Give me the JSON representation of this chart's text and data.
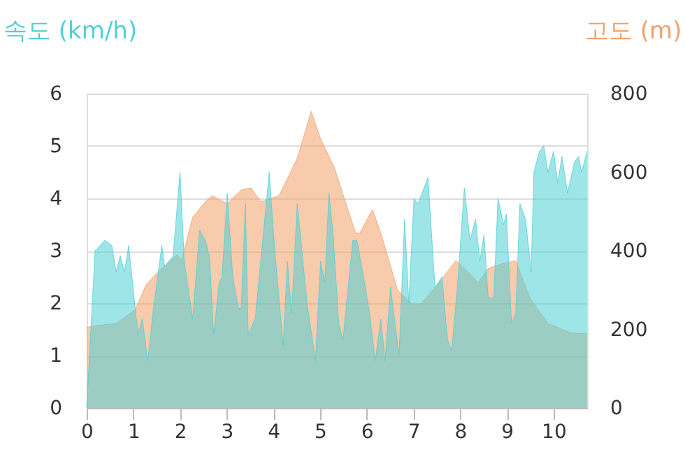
{
  "chart_data": {
    "type": "area",
    "ylabel": "속도 (km/h)",
    "y2label": "고도 (m)",
    "xlim": [
      0,
      10.72
    ],
    "xticks": [
      0,
      1,
      2,
      3,
      4,
      5,
      6,
      7,
      8,
      9,
      10
    ],
    "ylim": [
      0,
      6
    ],
    "yticks": [
      0,
      1,
      2,
      3,
      4,
      5,
      6
    ],
    "y2lim": [
      0,
      800
    ],
    "y2ticks": [
      0,
      200,
      400,
      600,
      800
    ],
    "grid": "y",
    "series": [
      {
        "color": "#f3a06a",
        "axis": "y2",
        "x": [
          0,
          0.24,
          0.63,
          1.04,
          1.28,
          1.52,
          1.94,
          2.03,
          2.27,
          2.54,
          2.69,
          3.01,
          3.31,
          3.52,
          3.73,
          4.12,
          4.51,
          4.81,
          5.01,
          5.31,
          5.76,
          5.85,
          6.12,
          6.3,
          6.66,
          6.96,
          7.16,
          7.49,
          7.91,
          8.09,
          8.39,
          8.6,
          8.84,
          9.19,
          9.49,
          9.88,
          10.39,
          10.72
        ],
        "values": [
          205,
          210,
          215,
          250,
          315,
          345,
          390,
          375,
          485,
          525,
          540,
          520,
          555,
          560,
          525,
          540,
          635,
          755,
          685,
          610,
          445,
          445,
          505,
          445,
          300,
          265,
          265,
          310,
          375,
          355,
          320,
          355,
          365,
          375,
          280,
          215,
          190,
          190
        ]
      },
      {
        "color": "#4fd0d6",
        "axis": "y",
        "x": [
          0,
          0.18,
          0.39,
          0.54,
          0.63,
          0.72,
          0.81,
          0.9,
          1.04,
          1.1,
          1.19,
          1.31,
          1.43,
          1.61,
          1.67,
          1.85,
          2.0,
          2.09,
          2.27,
          2.42,
          2.54,
          2.63,
          2.72,
          2.84,
          2.9,
          3.01,
          3.13,
          3.25,
          3.31,
          3.4,
          3.46,
          3.61,
          3.91,
          4.03,
          4.21,
          4.3,
          4.39,
          4.51,
          4.72,
          4.9,
          5.01,
          5.1,
          5.19,
          5.28,
          5.4,
          5.49,
          5.7,
          5.79,
          5.97,
          6.06,
          6.18,
          6.3,
          6.39,
          6.51,
          6.69,
          6.81,
          6.9,
          7.01,
          7.1,
          7.31,
          7.46,
          7.61,
          7.73,
          7.82,
          7.94,
          8.09,
          8.21,
          8.33,
          8.42,
          8.51,
          8.6,
          8.72,
          8.81,
          8.93,
          8.99,
          9.1,
          9.19,
          9.28,
          9.4,
          9.52,
          9.58,
          9.7,
          9.79,
          9.88,
          10.0,
          10.09,
          10.18,
          10.3,
          10.45,
          10.54,
          10.6,
          10.72
        ],
        "values": [
          0,
          3.0,
          3.2,
          3.1,
          2.6,
          2.9,
          2.6,
          3.1,
          1.9,
          1.4,
          1.7,
          0.9,
          1.9,
          3.1,
          2.7,
          2.9,
          4.5,
          2.8,
          1.7,
          3.4,
          3.2,
          2.9,
          1.4,
          2.4,
          2.5,
          4.1,
          2.5,
          1.9,
          1.9,
          3.9,
          1.4,
          1.7,
          4.5,
          3.0,
          1.2,
          2.8,
          1.8,
          3.9,
          2.0,
          0.9,
          2.8,
          2.4,
          4.1,
          3.3,
          1.6,
          1.3,
          3.2,
          3.2,
          2.3,
          1.8,
          0.9,
          1.7,
          0.9,
          2.3,
          1.0,
          3.6,
          2.0,
          4.0,
          3.9,
          4.4,
          2.3,
          2.5,
          1.3,
          1.1,
          2.3,
          4.2,
          3.2,
          3.6,
          2.8,
          3.3,
          2.1,
          2.1,
          4.0,
          3.5,
          3.7,
          1.6,
          1.8,
          3.9,
          3.6,
          2.6,
          4.5,
          4.9,
          5.0,
          4.5,
          4.9,
          4.3,
          4.8,
          4.1,
          4.7,
          4.8,
          4.5,
          4.9
        ]
      }
    ]
  }
}
